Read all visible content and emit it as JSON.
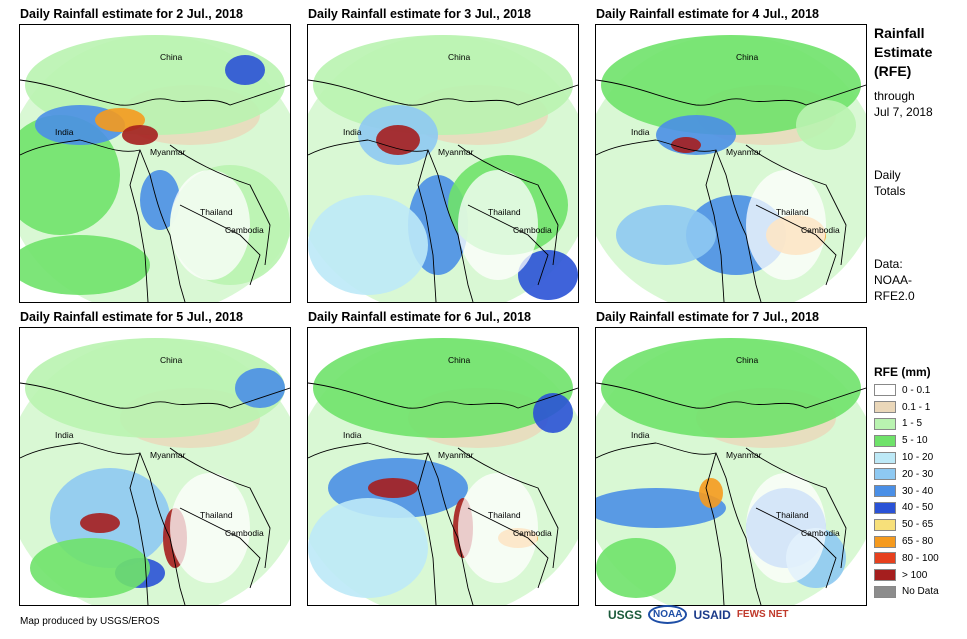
{
  "panels": [
    {
      "title": "Daily Rainfall estimate for 2 Jul., 2018"
    },
    {
      "title": "Daily Rainfall estimate for 3 Jul., 2018"
    },
    {
      "title": "Daily Rainfall estimate for 4 Jul., 2018"
    },
    {
      "title": "Daily Rainfall estimate for 5 Jul., 2018"
    },
    {
      "title": "Daily Rainfall estimate for 6 Jul., 2018"
    },
    {
      "title": "Daily Rainfall estimate for 7 Jul., 2018"
    }
  ],
  "map_labels": {
    "china": "China",
    "india": "India",
    "myanmar": "Myanmar",
    "thailand": "Thailand",
    "cambodia": "Cambodia"
  },
  "sidebar": {
    "title_line1": "Rainfall",
    "title_line2": "Estimate",
    "title_line3": "(RFE)",
    "through": "through",
    "date": "Jul 7, 2018",
    "daily1": "Daily",
    "daily2": "Totals",
    "data1": "Data:",
    "data2": "NOAA-",
    "data3": "RFE2.0"
  },
  "legend": {
    "title": "RFE (mm)",
    "items": [
      {
        "label": "0 - 0.1",
        "color": "#ffffff"
      },
      {
        "label": "0.1 - 1",
        "color": "#ead7b9"
      },
      {
        "label": "1 - 5",
        "color": "#b9f3b0"
      },
      {
        "label": "5 - 10",
        "color": "#6fe26a"
      },
      {
        "label": "10 - 20",
        "color": "#bde9f7"
      },
      {
        "label": "20 - 30",
        "color": "#8ec9f2"
      },
      {
        "label": "30 - 40",
        "color": "#4a8fe6"
      },
      {
        "label": "40 - 50",
        "color": "#2a52d6"
      },
      {
        "label": "50 - 65",
        "color": "#f7e07a"
      },
      {
        "label": "65 - 80",
        "color": "#f59a1e"
      },
      {
        "label": "80 - 100",
        "color": "#e6401e"
      },
      {
        "label": "> 100",
        "color": "#a51e1e"
      },
      {
        "label": "No Data",
        "color": "#8c8c8c"
      }
    ]
  },
  "footer": "Map produced by USGS/EROS",
  "logos": [
    "USGS",
    "NOAA",
    "USAID",
    "FEWS NET"
  ]
}
